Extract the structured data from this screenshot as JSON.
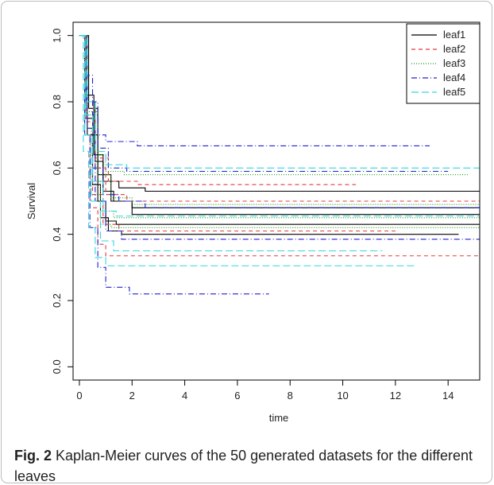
{
  "chart_data": {
    "type": "step",
    "xlabel": "time",
    "ylabel": "Survival",
    "caption_label": "Fig. 2",
    "caption": "Kaplan-Meier curves of the 50 generated datasets for the different leaves",
    "xlim": [
      -0.24,
      15.2
    ],
    "ylim": [
      -0.04,
      1.04
    ],
    "xticks": [
      0,
      2,
      4,
      6,
      8,
      10,
      12,
      14
    ],
    "yticks": [
      {
        "value": 0,
        "label": "0.0"
      },
      {
        "value": 0.2,
        "label": "0.2"
      },
      {
        "value": 0.4,
        "label": "0.4"
      },
      {
        "value": 0.6,
        "label": "0.6"
      },
      {
        "value": 0.8,
        "label": "0.8"
      },
      {
        "value": 1,
        "label": "1.0"
      }
    ],
    "legend": "topright",
    "series": [
      {
        "name": "leaf1",
        "color": "#000000",
        "dash": "none",
        "curves": [
          {
            "x": [
              0,
              0.3,
              0.6,
              0.9,
              1.3,
              2.0,
              15.2
            ],
            "values": [
              1,
              0.8,
              0.62,
              0.53,
              0.5,
              0.48,
              0.48
            ]
          },
          {
            "x": [
              0,
              0.2,
              0.5,
              0.8,
              1.1,
              1.6,
              14.4
            ],
            "values": [
              1,
              0.75,
              0.55,
              0.45,
              0.41,
              0.4,
              0.4
            ]
          },
          {
            "x": [
              0,
              0.25,
              0.55,
              0.9,
              1.5,
              2.5,
              15.2
            ],
            "values": [
              1,
              0.82,
              0.64,
              0.56,
              0.54,
              0.53,
              0.53
            ]
          },
          {
            "x": [
              0,
              0.3,
              0.7,
              1.0,
              1.4,
              15.2
            ],
            "values": [
              1,
              0.7,
              0.5,
              0.44,
              0.43,
              0.43
            ]
          },
          {
            "x": [
              0,
              0.35,
              0.7,
              1.2,
              2.0,
              15.2
            ],
            "values": [
              1,
              0.78,
              0.58,
              0.5,
              0.46,
              0.46
            ]
          }
        ]
      },
      {
        "name": "leaf2",
        "color": "#e8383d",
        "dash": "5,4",
        "curves": [
          {
            "x": [
              0,
              0.2,
              0.4,
              0.7,
              1.0,
              15.2
            ],
            "values": [
              1,
              0.7,
              0.48,
              0.37,
              0.335,
              0.335
            ]
          },
          {
            "x": [
              0,
              0.3,
              0.6,
              1.0,
              1.8,
              15.2
            ],
            "values": [
              1,
              0.78,
              0.6,
              0.52,
              0.5,
              0.5
            ]
          },
          {
            "x": [
              0,
              0.25,
              0.5,
              0.9,
              1.5,
              12.0
            ],
            "values": [
              1,
              0.74,
              0.52,
              0.43,
              0.41,
              0.41
            ]
          },
          {
            "x": [
              0,
              0.3,
              0.6,
              1.1,
              2.2,
              10.5
            ],
            "values": [
              1,
              0.8,
              0.63,
              0.56,
              0.55,
              0.55
            ]
          }
        ]
      },
      {
        "name": "leaf3",
        "color": "#1a9a1a",
        "dash": "1,2",
        "curves": [
          {
            "x": [
              0,
              0.25,
              0.5,
              0.8,
              1.3,
              15.2
            ],
            "values": [
              1,
              0.76,
              0.56,
              0.47,
              0.45,
              0.45
            ]
          },
          {
            "x": [
              0,
              0.3,
              0.6,
              1.0,
              1.7,
              14.8
            ],
            "values": [
              1,
              0.8,
              0.64,
              0.59,
              0.58,
              0.58
            ]
          },
          {
            "x": [
              0,
              0.2,
              0.45,
              0.8,
              1.2,
              15.2
            ],
            "values": [
              1,
              0.72,
              0.52,
              0.43,
              0.42,
              0.42
            ]
          },
          {
            "x": [
              0,
              0.3,
              0.7,
              1.2,
              2.0,
              15.2
            ],
            "values": [
              1,
              0.77,
              0.58,
              0.51,
              0.49,
              0.49
            ]
          }
        ]
      },
      {
        "name": "leaf4",
        "color": "#2020d0",
        "dash": "7,3,1,3",
        "curves": [
          {
            "x": [
              0,
              0.3,
              0.5,
              0.7,
              1.0,
              2.2,
              13.3
            ],
            "values": [
              1,
              0.88,
              0.76,
              0.7,
              0.68,
              0.667,
              0.667
            ]
          },
          {
            "x": [
              0,
              0.2,
              0.4,
              0.7,
              1.0,
              1.9,
              7.2
            ],
            "values": [
              1,
              0.7,
              0.42,
              0.3,
              0.24,
              0.22,
              0.22
            ]
          },
          {
            "x": [
              0,
              0.25,
              0.5,
              0.9,
              1.5,
              2.5,
              15.2
            ],
            "values": [
              1,
              0.8,
              0.6,
              0.52,
              0.5,
              0.48,
              0.48
            ]
          },
          {
            "x": [
              0,
              0.3,
              0.6,
              1.0,
              1.6,
              15.2
            ],
            "values": [
              1,
              0.72,
              0.5,
              0.41,
              0.385,
              0.385
            ]
          },
          {
            "x": [
              0,
              0.3,
              0.7,
              1.1,
              1.8,
              14.0
            ],
            "values": [
              1,
              0.8,
              0.66,
              0.6,
              0.59,
              0.59
            ]
          }
        ]
      },
      {
        "name": "leaf5",
        "color": "#33d6e0",
        "dash": "9,4",
        "curves": [
          {
            "x": [
              0,
              0.15,
              0.35,
              0.6,
              1.0,
              12.8
            ],
            "values": [
              1,
              0.65,
              0.42,
              0.33,
              0.305,
              0.305
            ]
          },
          {
            "x": [
              0,
              0.3,
              0.6,
              1.0,
              1.8,
              15.2
            ],
            "values": [
              1,
              0.8,
              0.65,
              0.61,
              0.6,
              0.6
            ]
          },
          {
            "x": [
              0,
              0.25,
              0.5,
              0.9,
              1.4,
              15.2
            ],
            "values": [
              1,
              0.76,
              0.56,
              0.47,
              0.455,
              0.455
            ]
          },
          {
            "x": [
              0,
              0.2,
              0.45,
              0.8,
              1.3,
              11.5
            ],
            "values": [
              1,
              0.7,
              0.5,
              0.38,
              0.35,
              0.35
            ]
          }
        ]
      }
    ]
  }
}
